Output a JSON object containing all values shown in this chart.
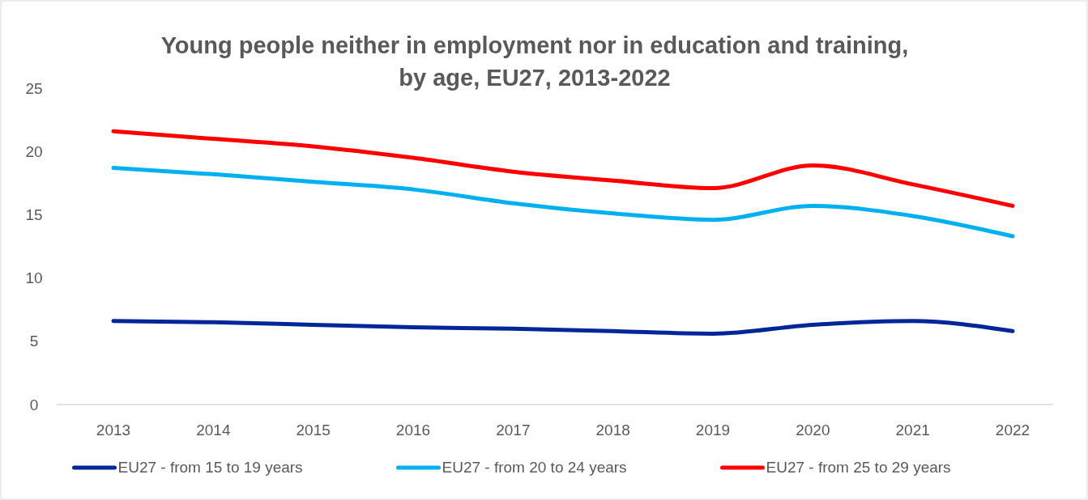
{
  "chart_data": {
    "type": "line",
    "title": "Young people neither in employment nor in education and training,\nby age, EU27, 2013-2022",
    "categories": [
      "2013",
      "2014",
      "2015",
      "2016",
      "2017",
      "2018",
      "2019",
      "2020",
      "2021",
      "2022"
    ],
    "series": [
      {
        "name": "EU27 - from 15 to 19 years",
        "color": "#002699",
        "values": [
          6.6,
          6.5,
          6.3,
          6.1,
          6.0,
          5.8,
          5.6,
          6.3,
          6.6,
          5.8
        ]
      },
      {
        "name": "EU27 - from 20 to 24 years",
        "color": "#00b0f0",
        "values": [
          18.7,
          18.2,
          17.6,
          17.0,
          15.9,
          15.1,
          14.6,
          15.7,
          14.9,
          13.3
        ]
      },
      {
        "name": "EU27 - from 25 to 29 years",
        "color": "#ff0000",
        "values": [
          21.6,
          21.0,
          20.4,
          19.5,
          18.4,
          17.7,
          17.1,
          18.9,
          17.4,
          15.7
        ]
      }
    ],
    "ylim": [
      0,
      25
    ],
    "yticks": [
      0,
      5,
      10,
      15,
      20,
      25
    ],
    "grid": false,
    "legend": "bottom",
    "marker": "none",
    "line_style": "solid"
  }
}
